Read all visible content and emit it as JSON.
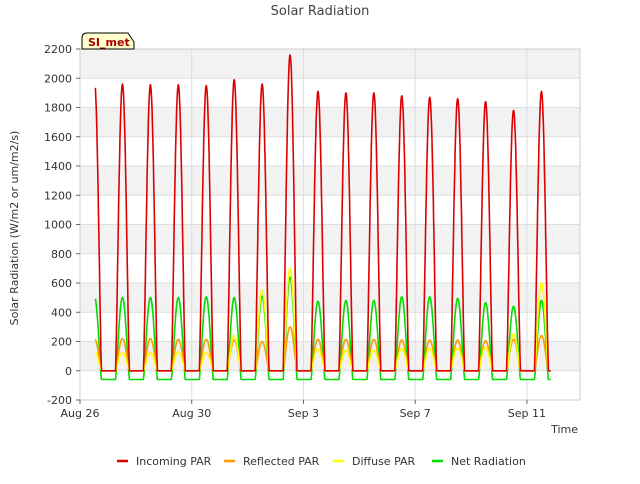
{
  "chart_data": {
    "type": "line",
    "title": "Solar Radiation",
    "xlabel": "Time",
    "ylabel": "Solar Radiation (W/m2 or um/m2/s)",
    "ylim": [
      -200,
      2200
    ],
    "xlim_days": [
      0,
      17.9
    ],
    "yticks": [
      -200,
      0,
      200,
      400,
      600,
      800,
      1000,
      1200,
      1400,
      1600,
      1800,
      2000,
      2200
    ],
    "xticks": [
      {
        "day": 0,
        "label": "Aug 26"
      },
      {
        "day": 4,
        "label": "Aug 30"
      },
      {
        "day": 8,
        "label": "Sep 3"
      },
      {
        "day": 12,
        "label": "Sep 7"
      },
      {
        "day": 16,
        "label": "Sep 11"
      }
    ],
    "grid": true,
    "legend_position": "bottom",
    "annotation": "SI_met",
    "days": [
      "Aug 26",
      "Aug 27",
      "Aug 28",
      "Aug 29",
      "Aug 30",
      "Aug 31",
      "Sep 1",
      "Sep 2",
      "Sep 3",
      "Sep 4",
      "Sep 5",
      "Sep 6",
      "Sep 7",
      "Sep 8",
      "Sep 9",
      "Sep 10",
      "Sep 11"
    ],
    "series": [
      {
        "name": "Incoming PAR",
        "color": "#dd0000",
        "daily_peaks": [
          1980,
          1960,
          1955,
          1955,
          1950,
          1990,
          1960,
          2160,
          1910,
          1900,
          1900,
          1880,
          1870,
          1860,
          1840,
          1780,
          1910
        ]
      },
      {
        "name": "Reflected PAR",
        "color": "#ff9900",
        "daily_peaks": [
          220,
          220,
          220,
          215,
          215,
          210,
          200,
          300,
          215,
          215,
          215,
          210,
          210,
          210,
          205,
          215,
          240
        ]
      },
      {
        "name": "Diffuse PAR",
        "color": "#ffff00",
        "daily_peaks": [
          130,
          125,
          125,
          130,
          125,
          240,
          550,
          700,
          150,
          140,
          140,
          150,
          150,
          155,
          160,
          250,
          600
        ]
      },
      {
        "name": "Net Radiation",
        "color": "#00dd00",
        "daily_peaks": [
          505,
          500,
          500,
          500,
          505,
          500,
          510,
          640,
          475,
          480,
          480,
          505,
          505,
          495,
          465,
          440,
          480
        ],
        "night_value": -60
      }
    ]
  }
}
